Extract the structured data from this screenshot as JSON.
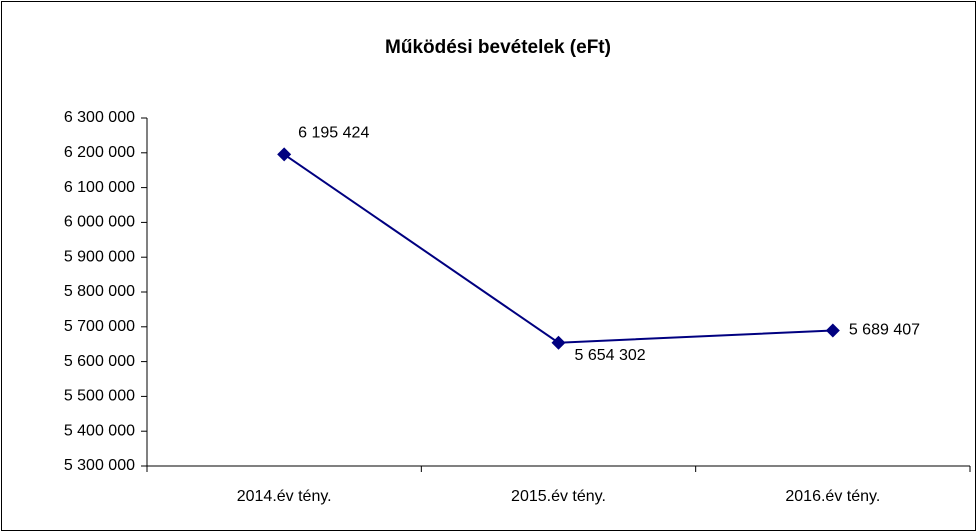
{
  "chart_data": {
    "type": "line",
    "title": "Működési bevételek (eFt)",
    "categories": [
      "2014.év tény.",
      "2015.év tény.",
      "2016.év tény."
    ],
    "series": [
      {
        "name": "Működési bevételek",
        "color": "#000080",
        "values": [
          6195424,
          5654302,
          5689407
        ],
        "value_labels": [
          "6 195 424",
          "5 654 302",
          "5 689 407"
        ]
      }
    ],
    "ylim": [
      5300000,
      6300000
    ],
    "yticks": [
      {
        "value": 5300000,
        "label": "5 300 000"
      },
      {
        "value": 5400000,
        "label": "5 400 000"
      },
      {
        "value": 5500000,
        "label": "5 500 000"
      },
      {
        "value": 5600000,
        "label": "5 600 000"
      },
      {
        "value": 5700000,
        "label": "5 700 000"
      },
      {
        "value": 5800000,
        "label": "5 800 000"
      },
      {
        "value": 5900000,
        "label": "5 900 000"
      },
      {
        "value": 6000000,
        "label": "6 000 000"
      },
      {
        "value": 6100000,
        "label": "6 100 000"
      },
      {
        "value": 6200000,
        "label": "6 200 000"
      },
      {
        "value": 6300000,
        "label": "6 300 000"
      }
    ],
    "grid": false
  }
}
